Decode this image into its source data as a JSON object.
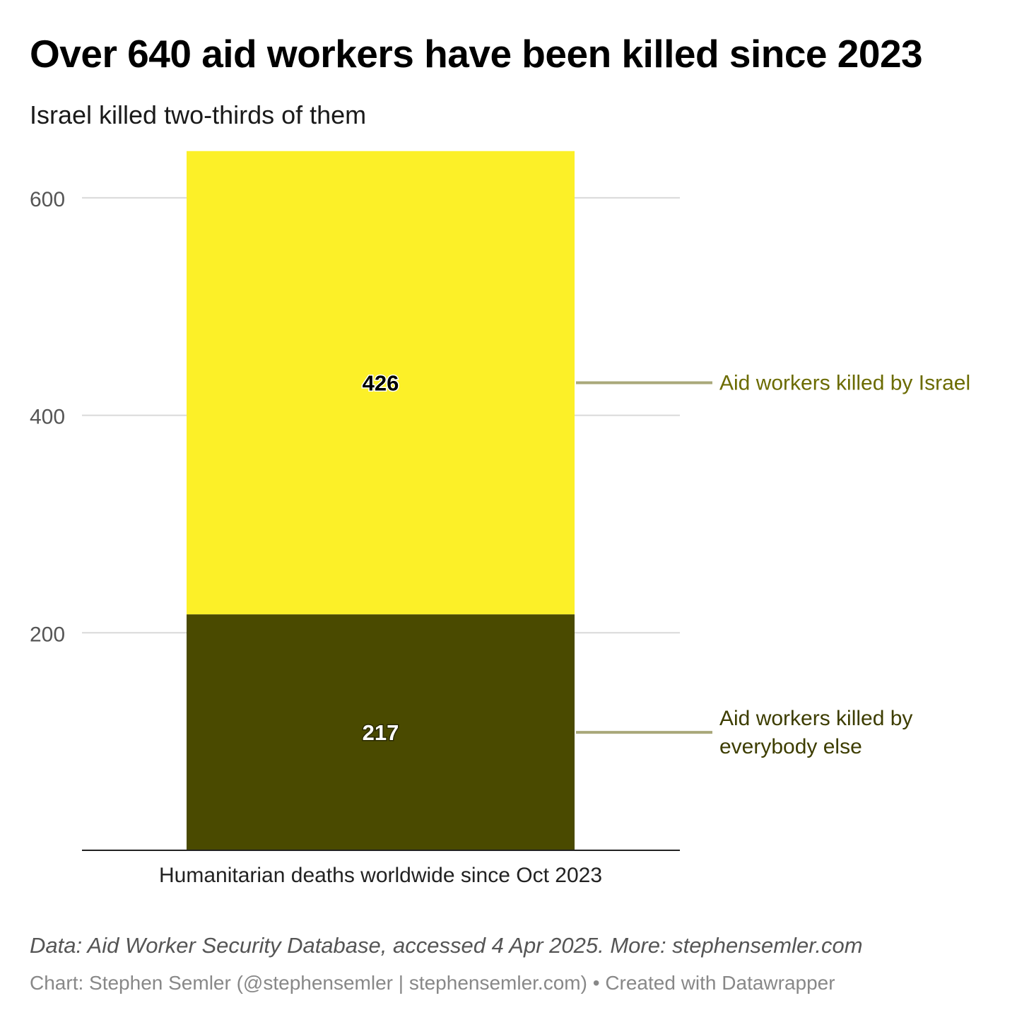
{
  "header": {
    "title": "Over 640 aid workers have been killed since 2023",
    "subtitle": "Israel killed two-thirds of them"
  },
  "chart_data": {
    "type": "bar",
    "stacked": true,
    "categories": [
      "Humanitarian deaths worldwide since Oct 2023"
    ],
    "series": [
      {
        "name": "Aid workers killed by everybody else",
        "values": [
          217
        ],
        "color": "#4a4a00",
        "label_color": "#3d3d00"
      },
      {
        "name": "Aid workers killed by Israel",
        "values": [
          426
        ],
        "color": "#fcf028",
        "label_color": "#6b6b00"
      }
    ],
    "data_labels": [
      "217",
      "426"
    ],
    "yticks": [
      200,
      400,
      600
    ],
    "ylim": [
      0,
      643
    ],
    "grid": true,
    "legend": "direct labels, right of bar"
  },
  "footer": {
    "notes": "Data: Aid Worker Security Database, accessed 4 Apr 2025. More: stephensemler.com",
    "credit_prefix": "Chart: Stephen Semler (@stephensemler | stephensemler.com)",
    "credit_separator": " • ",
    "credit_suffix": "Created with Datawrapper"
  }
}
